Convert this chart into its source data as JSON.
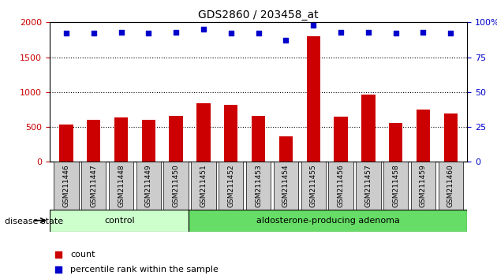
{
  "title": "GDS2860 / 203458_at",
  "categories": [
    "GSM211446",
    "GSM211447",
    "GSM211448",
    "GSM211449",
    "GSM211450",
    "GSM211451",
    "GSM211452",
    "GSM211453",
    "GSM211454",
    "GSM211455",
    "GSM211456",
    "GSM211457",
    "GSM211458",
    "GSM211459",
    "GSM211460"
  ],
  "counts": [
    540,
    600,
    635,
    600,
    660,
    840,
    820,
    660,
    360,
    1800,
    645,
    960,
    555,
    750,
    695
  ],
  "percentiles": [
    92,
    92,
    93,
    92,
    93,
    95,
    92,
    92,
    87,
    98,
    93,
    93,
    92,
    93,
    92
  ],
  "left_ylim": [
    0,
    2000
  ],
  "right_ylim": [
    0,
    100
  ],
  "left_yticks": [
    0,
    500,
    1000,
    1500,
    2000
  ],
  "right_yticks": [
    0,
    25,
    50,
    75,
    100
  ],
  "bar_color": "#cc0000",
  "dot_color": "#0000cc",
  "grid_color": "#000000",
  "left_tick_color": "#cc0000",
  "right_tick_color": "#0000cc",
  "control_count": 5,
  "control_label": "control",
  "adenoma_label": "aldosterone-producing adenoma",
  "control_bg": "#ccffcc",
  "adenoma_bg": "#66dd66",
  "disease_label": "disease state",
  "legend_count_label": "count",
  "legend_percentile_label": "percentile rank within the sample",
  "xlabel_bg": "#cccccc",
  "figsize": [
    6.3,
    3.54
  ],
  "dpi": 100
}
